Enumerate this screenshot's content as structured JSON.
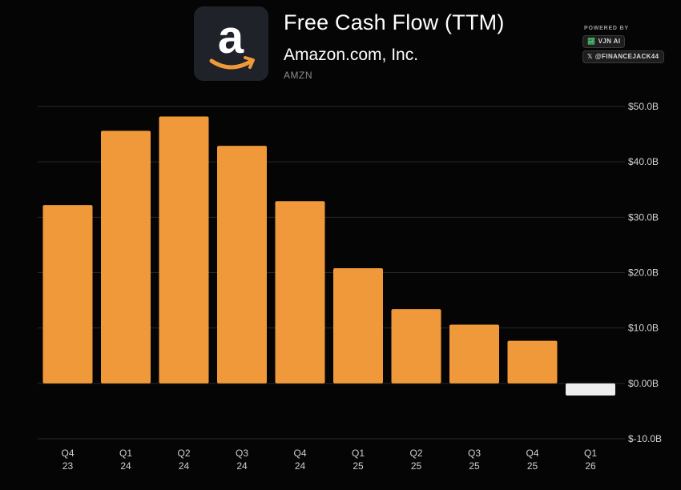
{
  "header": {
    "title": "Free Cash Flow (TTM)",
    "company": "Amazon.com, Inc.",
    "ticker": "AMZN",
    "logo_letter": "a",
    "powered_by": "POWERED BY",
    "badge_brand": "VJN AI",
    "badge_handle": "@FINANCEJACK44"
  },
  "colors": {
    "bar": "#F0993B",
    "negative_bar": "#EDEDED",
    "background": "#050505",
    "grid": "#2a2a2a",
    "logo_arrow": "#F0993B"
  },
  "chart_data": {
    "type": "bar",
    "categories": [
      [
        "Q4",
        "23"
      ],
      [
        "Q1",
        "24"
      ],
      [
        "Q2",
        "24"
      ],
      [
        "Q3",
        "24"
      ],
      [
        "Q4",
        "24"
      ],
      [
        "Q1",
        "25"
      ],
      [
        "Q2",
        "25"
      ],
      [
        "Q3",
        "25"
      ],
      [
        "Q4",
        "25"
      ],
      [
        "Q1",
        "26"
      ]
    ],
    "values": [
      32.2,
      45.6,
      48.2,
      42.9,
      32.9,
      20.8,
      13.4,
      10.6,
      7.7,
      -2.2
    ],
    "value_unit": "billion USD",
    "ylim": [
      -10,
      50
    ],
    "yticks": [
      50,
      40,
      30,
      20,
      10,
      0,
      -10
    ],
    "ytick_labels": [
      "$50.0B",
      "$40.0B",
      "$30.0B",
      "$20.0B",
      "$10.0B",
      "$0.00B",
      "$-10.0B"
    ],
    "y_axis_side": "right",
    "grid": true,
    "legend": "none"
  }
}
